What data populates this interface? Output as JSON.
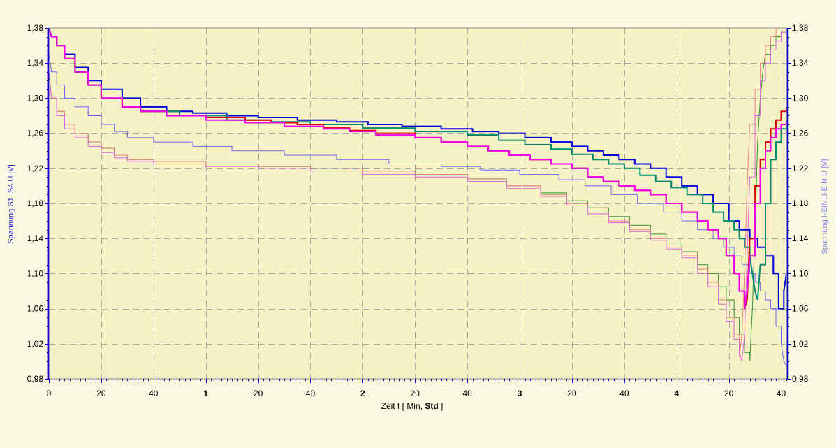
{
  "chart_data": {
    "type": "line",
    "xlabel_parts": [
      "Zeit   t   [ Min, ",
      "Std",
      " ]"
    ],
    "ylabel_left": "Spannung S1..S4  U  [V]",
    "ylabel_right": "Spannung I-EIN..I-EIN  U  [V]",
    "xlim": [
      0,
      282
    ],
    "ylim": [
      0.98,
      1.38
    ],
    "x_ticks": [
      {
        "v": 0,
        "label": "0",
        "bold": false
      },
      {
        "v": 20,
        "label": "20",
        "bold": false
      },
      {
        "v": 40,
        "label": "40",
        "bold": false
      },
      {
        "v": 60,
        "label": "1",
        "bold": true
      },
      {
        "v": 80,
        "label": "20",
        "bold": false
      },
      {
        "v": 100,
        "label": "40",
        "bold": false
      },
      {
        "v": 120,
        "label": "2",
        "bold": true
      },
      {
        "v": 140,
        "label": "20",
        "bold": false
      },
      {
        "v": 160,
        "label": "40",
        "bold": false
      },
      {
        "v": 180,
        "label": "3",
        "bold": true
      },
      {
        "v": 200,
        "label": "20",
        "bold": false
      },
      {
        "v": 220,
        "label": "40",
        "bold": false
      },
      {
        "v": 240,
        "label": "4",
        "bold": true
      },
      {
        "v": 260,
        "label": "20",
        "bold": false
      },
      {
        "v": 280,
        "label": "40",
        "bold": false
      }
    ],
    "y_ticks": [
      {
        "v": 0.98,
        "label": "0,98"
      },
      {
        "v": 1.02,
        "label": "1,02"
      },
      {
        "v": 1.06,
        "label": "1,06"
      },
      {
        "v": 1.1,
        "label": "1,10"
      },
      {
        "v": 1.14,
        "label": "1,14"
      },
      {
        "v": 1.18,
        "label": "1,18"
      },
      {
        "v": 1.22,
        "label": "1,22"
      },
      {
        "v": 1.26,
        "label": "1,26"
      },
      {
        "v": 1.3,
        "label": "1,30"
      },
      {
        "v": 1.34,
        "label": "1,34"
      },
      {
        "v": 1.38,
        "label": "1,38"
      }
    ],
    "grid": true,
    "series": [
      {
        "color": "#0000dd",
        "width": 2,
        "step": true,
        "x": [
          0,
          1,
          3,
          6,
          10,
          15,
          20,
          28,
          35,
          45,
          55,
          68,
          80,
          95,
          110,
          122,
          135,
          150,
          162,
          172,
          182,
          192,
          200,
          206,
          212,
          218,
          224,
          230,
          236,
          242,
          248,
          254,
          260,
          264,
          268,
          271,
          274,
          277,
          279,
          281,
          282
        ],
        "y": [
          1.38,
          1.37,
          1.36,
          1.35,
          1.335,
          1.32,
          1.31,
          1.3,
          1.29,
          1.285,
          1.283,
          1.28,
          1.278,
          1.275,
          1.273,
          1.27,
          1.268,
          1.265,
          1.262,
          1.26,
          1.255,
          1.25,
          1.245,
          1.24,
          1.235,
          1.23,
          1.225,
          1.22,
          1.21,
          1.2,
          1.19,
          1.18,
          1.16,
          1.15,
          1.14,
          1.13,
          1.12,
          1.1,
          1.06,
          1.08,
          1.1
        ]
      },
      {
        "color": "#008c6e",
        "width": 2,
        "step": true,
        "x": [
          0,
          1,
          3,
          6,
          10,
          15,
          20,
          28,
          35,
          50,
          68,
          85,
          100,
          120,
          140,
          160,
          172,
          182,
          192,
          200,
          208,
          214,
          220,
          226,
          232,
          238,
          244,
          250,
          254,
          258,
          262,
          264,
          266,
          268,
          269,
          270,
          271,
          272,
          274,
          276,
          278,
          280,
          282
        ],
        "y": [
          1.38,
          1.37,
          1.36,
          1.345,
          1.33,
          1.315,
          1.3,
          1.29,
          1.285,
          1.28,
          1.275,
          1.273,
          1.27,
          1.266,
          1.262,
          1.258,
          1.252,
          1.247,
          1.242,
          1.236,
          1.23,
          1.225,
          1.22,
          1.212,
          1.205,
          1.198,
          1.19,
          1.18,
          1.17,
          1.16,
          1.15,
          1.14,
          1.13,
          1.12,
          1.1,
          1.08,
          1.07,
          1.11,
          1.18,
          1.23,
          1.25,
          1.265,
          1.275
        ]
      },
      {
        "color": "#dd0000",
        "width": 2,
        "step": true,
        "x": [
          0,
          1,
          3,
          6,
          10,
          15,
          20,
          28,
          35,
          45,
          60,
          75,
          85,
          95,
          105,
          115,
          125,
          140,
          150,
          160,
          168,
          176,
          184,
          192,
          200,
          206,
          212,
          218,
          224,
          230,
          236,
          242,
          248,
          252,
          256,
          259,
          262,
          264,
          266,
          267,
          268,
          270,
          272,
          274,
          276,
          278,
          280,
          282
        ],
        "y": [
          1.38,
          1.37,
          1.36,
          1.345,
          1.33,
          1.315,
          1.3,
          1.29,
          1.285,
          1.28,
          1.278,
          1.275,
          1.272,
          1.27,
          1.266,
          1.263,
          1.26,
          1.255,
          1.25,
          1.245,
          1.24,
          1.235,
          1.23,
          1.225,
          1.22,
          1.21,
          1.205,
          1.2,
          1.195,
          1.19,
          1.18,
          1.17,
          1.16,
          1.15,
          1.14,
          1.12,
          1.1,
          1.08,
          1.06,
          1.07,
          1.14,
          1.2,
          1.23,
          1.25,
          1.265,
          1.275,
          1.285,
          1.29
        ]
      },
      {
        "color": "#ee00ee",
        "width": 2,
        "step": true,
        "x": [
          0,
          1,
          3,
          6,
          10,
          15,
          20,
          28,
          35,
          45,
          60,
          75,
          90,
          105,
          115,
          125,
          140,
          150,
          160,
          168,
          176,
          184,
          192,
          200,
          206,
          212,
          218,
          224,
          230,
          236,
          242,
          248,
          252,
          256,
          259,
          262,
          264,
          266,
          267,
          268,
          270,
          272,
          274,
          276,
          278,
          280,
          282
        ],
        "y": [
          1.38,
          1.37,
          1.36,
          1.345,
          1.33,
          1.315,
          1.3,
          1.29,
          1.285,
          1.28,
          1.275,
          1.272,
          1.268,
          1.265,
          1.262,
          1.258,
          1.255,
          1.25,
          1.245,
          1.24,
          1.235,
          1.23,
          1.225,
          1.22,
          1.21,
          1.205,
          1.2,
          1.195,
          1.19,
          1.18,
          1.17,
          1.16,
          1.15,
          1.14,
          1.12,
          1.1,
          1.08,
          1.06,
          1.08,
          1.12,
          1.18,
          1.22,
          1.24,
          1.255,
          1.265,
          1.27,
          1.275
        ]
      },
      {
        "color": "#6a6aee",
        "width": 1,
        "step": true,
        "x": [
          0,
          1,
          3,
          6,
          10,
          15,
          20,
          25,
          30,
          40,
          55,
          70,
          90,
          110,
          130,
          150,
          165,
          180,
          195,
          205,
          215,
          225,
          235,
          242,
          248,
          254,
          258,
          262,
          265,
          268,
          270,
          272,
          274,
          276,
          278,
          280,
          281,
          282
        ],
        "y": [
          1.35,
          1.33,
          1.315,
          1.3,
          1.29,
          1.28,
          1.27,
          1.262,
          1.255,
          1.25,
          1.245,
          1.24,
          1.235,
          1.23,
          1.225,
          1.222,
          1.218,
          1.213,
          1.207,
          1.2,
          1.19,
          1.18,
          1.17,
          1.16,
          1.15,
          1.14,
          1.13,
          1.12,
          1.11,
          1.1,
          1.09,
          1.08,
          1.07,
          1.06,
          1.04,
          1.02,
          1.0,
          0.995
        ]
      },
      {
        "color": "#2e962e",
        "width": 1,
        "step": true,
        "x": [
          0,
          1,
          3,
          6,
          10,
          15,
          20,
          25,
          30,
          40,
          60,
          80,
          100,
          120,
          140,
          160,
          175,
          188,
          198,
          206,
          214,
          222,
          230,
          236,
          242,
          248,
          252,
          256,
          259,
          262,
          264,
          266,
          268,
          269,
          270,
          271,
          272,
          273,
          274,
          276,
          278,
          280,
          282
        ],
        "y": [
          1.33,
          1.3,
          1.285,
          1.27,
          1.26,
          1.25,
          1.243,
          1.235,
          1.23,
          1.228,
          1.225,
          1.222,
          1.22,
          1.217,
          1.213,
          1.208,
          1.2,
          1.192,
          1.183,
          1.175,
          1.165,
          1.155,
          1.145,
          1.135,
          1.125,
          1.11,
          1.1,
          1.085,
          1.07,
          1.05,
          1.03,
          1.01,
          1.0,
          1.06,
          1.15,
          1.25,
          1.3,
          1.33,
          1.35,
          1.36,
          1.37,
          1.375,
          1.38
        ]
      },
      {
        "color": "#f08080",
        "width": 1,
        "step": true,
        "x": [
          0,
          1,
          3,
          6,
          10,
          15,
          20,
          25,
          30,
          40,
          60,
          80,
          100,
          120,
          140,
          160,
          175,
          188,
          198,
          206,
          214,
          222,
          230,
          236,
          242,
          248,
          252,
          256,
          259,
          262,
          264,
          265,
          266,
          267,
          268,
          270,
          272,
          274,
          276,
          278,
          280
        ],
        "y": [
          1.33,
          1.3,
          1.285,
          1.27,
          1.26,
          1.25,
          1.243,
          1.235,
          1.23,
          1.228,
          1.225,
          1.222,
          1.22,
          1.217,
          1.213,
          1.208,
          1.2,
          1.19,
          1.18,
          1.17,
          1.16,
          1.15,
          1.14,
          1.13,
          1.12,
          1.105,
          1.09,
          1.07,
          1.05,
          1.03,
          1.005,
          1.03,
          1.1,
          1.2,
          1.27,
          1.31,
          1.34,
          1.36,
          1.37,
          1.38,
          1.38
        ]
      },
      {
        "color": "#dd66dd",
        "width": 1,
        "step": true,
        "x": [
          0,
          1,
          3,
          6,
          10,
          15,
          20,
          25,
          30,
          40,
          60,
          80,
          100,
          120,
          140,
          160,
          175,
          188,
          198,
          206,
          214,
          222,
          230,
          236,
          242,
          248,
          252,
          256,
          259,
          262,
          264,
          265,
          266,
          267,
          268,
          270,
          272,
          274,
          276,
          278,
          280,
          282
        ],
        "y": [
          1.33,
          1.3,
          1.28,
          1.265,
          1.255,
          1.245,
          1.238,
          1.232,
          1.228,
          1.225,
          1.222,
          1.22,
          1.217,
          1.213,
          1.21,
          1.205,
          1.197,
          1.188,
          1.178,
          1.168,
          1.158,
          1.148,
          1.138,
          1.128,
          1.118,
          1.1,
          1.085,
          1.065,
          1.045,
          1.025,
          1.01,
          1.0,
          1.03,
          1.12,
          1.21,
          1.28,
          1.32,
          1.34,
          1.355,
          1.365,
          1.375,
          1.38
        ]
      }
    ]
  }
}
